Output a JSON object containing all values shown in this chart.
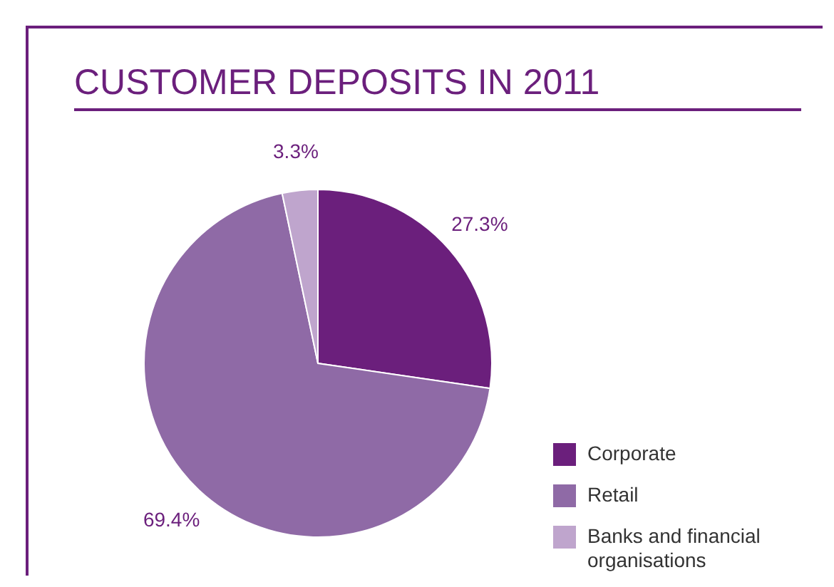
{
  "chart_data": {
    "type": "pie",
    "title": "CUSTOMER DEPOSITS IN 2011",
    "categories": [
      "Corporate",
      "Retail",
      "Banks and financial organisations"
    ],
    "values": [
      27.3,
      69.4,
      3.3
    ],
    "colors": [
      "#6b1f7c",
      "#8f6aa6",
      "#bfa5cd"
    ],
    "value_labels": [
      "27.3%",
      "69.4%",
      "3.3%"
    ],
    "legend": "bottom right"
  }
}
